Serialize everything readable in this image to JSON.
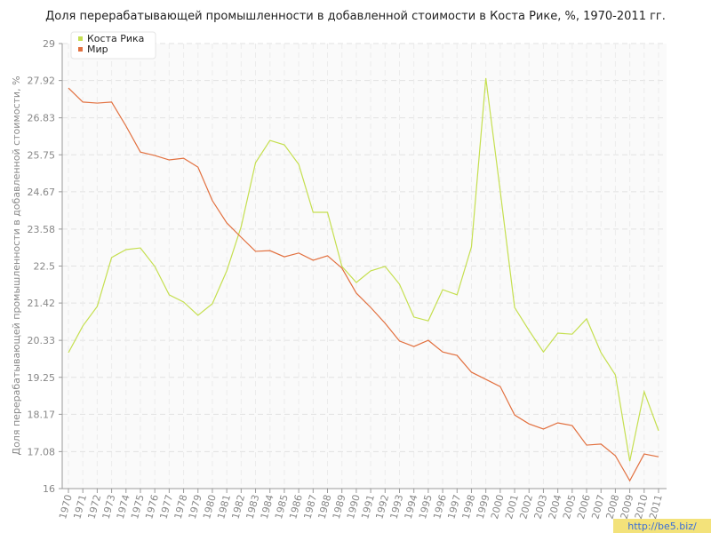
{
  "chart_data": {
    "type": "line",
    "title": "Доля перерабатывающей промышленности в добавленной стоимости в Коста Рике, %, 1970-2011 гг.",
    "y_label": "Доля перерабатывающей промышленности в добавленной стоимости, %",
    "watermark": "http://be5.biz/",
    "x": [
      1970,
      1971,
      1972,
      1973,
      1974,
      1975,
      1976,
      1977,
      1978,
      1979,
      1980,
      1981,
      1982,
      1983,
      1984,
      1985,
      1986,
      1987,
      1988,
      1989,
      1990,
      1991,
      1992,
      1993,
      1994,
      1995,
      1996,
      1997,
      1998,
      1999,
      2000,
      2001,
      2002,
      2003,
      2004,
      2005,
      2006,
      2007,
      2008,
      2009,
      2010,
      2011
    ],
    "xlim": [
      1970,
      2011
    ],
    "xticks": [
      1970,
      1971,
      1972,
      1973,
      1974,
      1975,
      1976,
      1977,
      1978,
      1979,
      1980,
      1981,
      1982,
      1983,
      1984,
      1985,
      1986,
      1987,
      1988,
      1989,
      1990,
      1991,
      1992,
      1993,
      1994,
      1995,
      1996,
      1997,
      1998,
      1999,
      2000,
      2001,
      2002,
      2003,
      2004,
      2005,
      2006,
      2007,
      2008,
      2009,
      2010,
      2011
    ],
    "ylim": [
      16,
      29
    ],
    "yticks": [
      16,
      17.08,
      18.17,
      19.25,
      20.33,
      21.42,
      22.5,
      23.58,
      24.67,
      25.75,
      26.83,
      27.92,
      29
    ],
    "grid": true,
    "legend": "top-left",
    "series": [
      {
        "name": "Коста Рика",
        "color": "#c5df4f",
        "values": [
          19.97,
          20.75,
          21.32,
          22.75,
          22.98,
          23.03,
          22.49,
          21.66,
          21.45,
          21.06,
          21.4,
          22.36,
          23.65,
          25.52,
          26.17,
          26.04,
          25.47,
          24.07,
          24.07,
          22.49,
          22.02,
          22.36,
          22.49,
          21.97,
          21.01,
          20.9,
          21.81,
          21.66,
          23.06,
          27.99,
          24.69,
          21.29,
          20.62,
          19.99,
          20.54,
          20.51,
          20.96,
          19.97,
          19.32,
          16.8,
          18.83,
          17.69
        ]
      },
      {
        "name": "Мир",
        "color": "#e2703f",
        "values": [
          27.7,
          27.29,
          27.26,
          27.29,
          26.59,
          25.83,
          25.73,
          25.6,
          25.65,
          25.39,
          24.41,
          23.76,
          23.34,
          22.93,
          22.95,
          22.77,
          22.88,
          22.67,
          22.8,
          22.44,
          21.71,
          21.29,
          20.83,
          20.31,
          20.15,
          20.33,
          19.99,
          19.89,
          19.4,
          19.19,
          18.98,
          18.15,
          17.89,
          17.74,
          17.92,
          17.84,
          17.27,
          17.3,
          16.96,
          16.23,
          17.01,
          16.93
        ]
      }
    ]
  }
}
